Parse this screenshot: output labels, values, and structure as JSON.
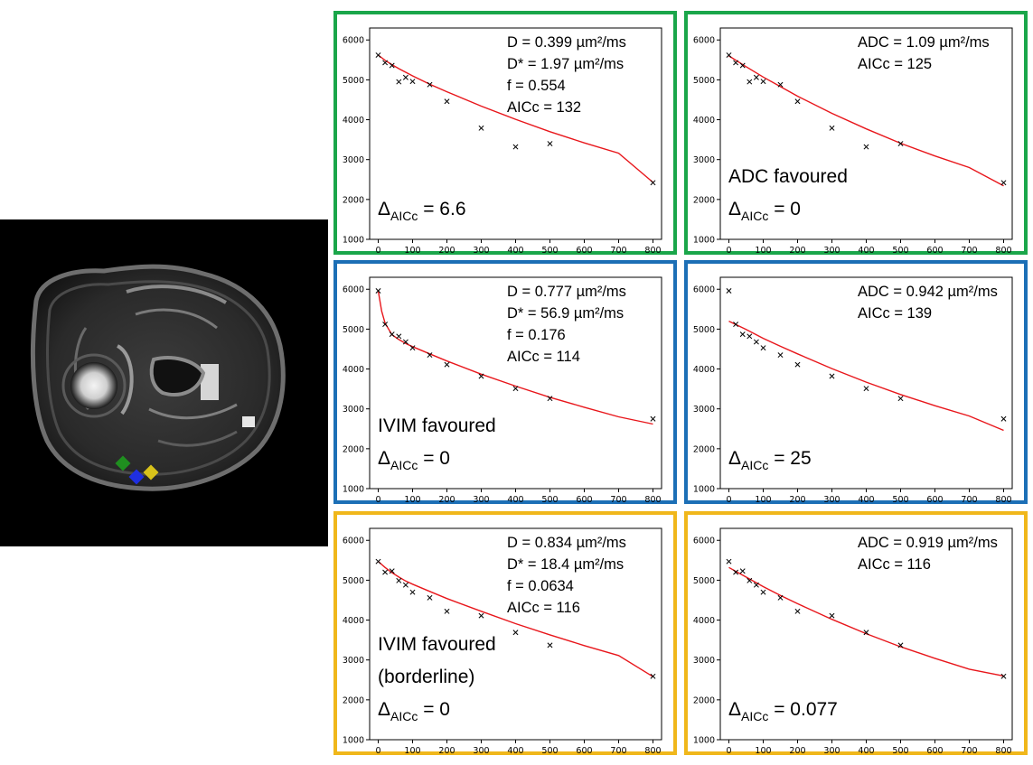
{
  "mri_image": {
    "description_icon": "mri-cross-section-image",
    "roi_markers": [
      {
        "name": "roi-green",
        "color": "#1f8f1f"
      },
      {
        "name": "roi-blue",
        "color": "#1f2fe0"
      },
      {
        "name": "roi-yellow",
        "color": "#d8c21a"
      }
    ]
  },
  "colors": {
    "green": "#1aa64a",
    "blue": "#1c6fb6",
    "yellow": "#f0b71b",
    "fit": "#e8161b",
    "marker": "#000000"
  },
  "chart_data": [
    {
      "type": "scatter",
      "panel": "row1-ivim",
      "border": "green",
      "x": [
        0,
        20,
        40,
        60,
        80,
        100,
        150,
        200,
        300,
        400,
        500,
        800
      ],
      "y": [
        5620,
        5430,
        5360,
        4950,
        5060,
        4960,
        4880,
        4460,
        3790,
        3320,
        3400,
        2420
      ],
      "fit_points": [
        [
          0,
          5620
        ],
        [
          20,
          5490
        ],
        [
          40,
          5380
        ],
        [
          60,
          5280
        ],
        [
          80,
          5190
        ],
        [
          100,
          5100
        ],
        [
          150,
          4890
        ],
        [
          200,
          4700
        ],
        [
          300,
          4340
        ],
        [
          400,
          4010
        ],
        [
          500,
          3700
        ],
        [
          600,
          3420
        ],
        [
          700,
          3160
        ],
        [
          800,
          2430
        ]
      ],
      "xticks": [
        "0",
        "100",
        "200",
        "300",
        "400",
        "500",
        "600",
        "700",
        "800"
      ],
      "yticks": [
        "1000",
        "2000",
        "3000",
        "4000",
        "5000",
        "6000"
      ],
      "xlim": [
        -25,
        825
      ],
      "ylim": [
        1000,
        6300
      ],
      "annotation_lines": [
        "D = 0.399 µm²/ms",
        "D* = 1.97 µm²/ms",
        "f = 0.554",
        "AICc = 132"
      ],
      "verdict_lines": [],
      "delta_prefix": "Δ",
      "delta_sub": "AICc",
      "delta_value": " = 6.6"
    },
    {
      "type": "scatter",
      "panel": "row1-adc",
      "border": "green",
      "x": [
        0,
        20,
        40,
        60,
        80,
        100,
        150,
        200,
        300,
        400,
        500,
        800
      ],
      "y": [
        5620,
        5430,
        5360,
        4950,
        5060,
        4960,
        4880,
        4460,
        3790,
        3320,
        3400,
        2420
      ],
      "fit_points": [
        [
          0,
          5600
        ],
        [
          50,
          5330
        ],
        [
          100,
          5070
        ],
        [
          150,
          4830
        ],
        [
          200,
          4590
        ],
        [
          300,
          4160
        ],
        [
          400,
          3770
        ],
        [
          500,
          3410
        ],
        [
          600,
          3090
        ],
        [
          700,
          2800
        ],
        [
          800,
          2340
        ]
      ],
      "xticks": [
        "0",
        "100",
        "200",
        "300",
        "400",
        "500",
        "600",
        "700",
        "800"
      ],
      "yticks": [
        "1000",
        "2000",
        "3000",
        "4000",
        "5000",
        "6000"
      ],
      "xlim": [
        -25,
        825
      ],
      "ylim": [
        1000,
        6300
      ],
      "annotation_lines": [
        "ADC = 1.09 µm²/ms",
        "AICc = 125"
      ],
      "verdict_lines": [
        "ADC favoured"
      ],
      "delta_prefix": "Δ",
      "delta_sub": "AICc",
      "delta_value": " = 0"
    },
    {
      "type": "scatter",
      "panel": "row2-ivim",
      "border": "blue",
      "x": [
        0,
        20,
        40,
        60,
        80,
        100,
        150,
        200,
        300,
        400,
        500,
        800
      ],
      "y": [
        5960,
        5120,
        4870,
        4820,
        4680,
        4530,
        4350,
        4110,
        3820,
        3510,
        3260,
        2750
      ],
      "fit_points": [
        [
          0,
          5960
        ],
        [
          10,
          5450
        ],
        [
          20,
          5150
        ],
        [
          40,
          4860
        ],
        [
          60,
          4740
        ],
        [
          80,
          4640
        ],
        [
          100,
          4560
        ],
        [
          150,
          4380
        ],
        [
          200,
          4200
        ],
        [
          300,
          3870
        ],
        [
          400,
          3570
        ],
        [
          500,
          3290
        ],
        [
          600,
          3040
        ],
        [
          700,
          2800
        ],
        [
          800,
          2620
        ]
      ],
      "xticks": [
        "0",
        "100",
        "200",
        "300",
        "400",
        "500",
        "600",
        "700",
        "800"
      ],
      "yticks": [
        "1000",
        "2000",
        "3000",
        "4000",
        "5000",
        "6000"
      ],
      "xlim": [
        -25,
        825
      ],
      "ylim": [
        1000,
        6300
      ],
      "annotation_lines": [
        "D = 0.777 µm²/ms",
        "D* = 56.9 µm²/ms",
        "f = 0.176",
        "AICc = 114"
      ],
      "verdict_lines": [
        "IVIM favoured"
      ],
      "delta_prefix": "Δ",
      "delta_sub": "AICc",
      "delta_value": " = 0"
    },
    {
      "type": "scatter",
      "panel": "row2-adc",
      "border": "blue",
      "x": [
        0,
        20,
        40,
        60,
        80,
        100,
        150,
        200,
        300,
        400,
        500,
        800
      ],
      "y": [
        5960,
        5120,
        4870,
        4820,
        4680,
        4530,
        4350,
        4110,
        3820,
        3510,
        3260,
        2750
      ],
      "fit_points": [
        [
          0,
          5200
        ],
        [
          50,
          4990
        ],
        [
          100,
          4770
        ],
        [
          150,
          4570
        ],
        [
          200,
          4380
        ],
        [
          300,
          4010
        ],
        [
          400,
          3670
        ],
        [
          500,
          3360
        ],
        [
          600,
          3080
        ],
        [
          700,
          2820
        ],
        [
          800,
          2460
        ]
      ],
      "xticks": [
        "0",
        "100",
        "200",
        "300",
        "400",
        "500",
        "600",
        "700",
        "800"
      ],
      "yticks": [
        "1000",
        "2000",
        "3000",
        "4000",
        "5000",
        "6000"
      ],
      "xlim": [
        -25,
        825
      ],
      "ylim": [
        1000,
        6300
      ],
      "annotation_lines": [
        "ADC = 0.942 µm²/ms",
        "AICc = 139"
      ],
      "verdict_lines": [],
      "delta_prefix": "Δ",
      "delta_sub": "AICc",
      "delta_value": " = 25"
    },
    {
      "type": "scatter",
      "panel": "row3-ivim",
      "border": "yellow",
      "x": [
        0,
        20,
        40,
        60,
        80,
        100,
        150,
        200,
        300,
        400,
        500,
        800
      ],
      "y": [
        5470,
        5200,
        5230,
        4990,
        4880,
        4700,
        4560,
        4220,
        4110,
        3690,
        3370,
        2590
      ],
      "fit_points": [
        [
          0,
          5470
        ],
        [
          20,
          5320
        ],
        [
          40,
          5190
        ],
        [
          60,
          5080
        ],
        [
          80,
          4980
        ],
        [
          100,
          4900
        ],
        [
          150,
          4720
        ],
        [
          200,
          4540
        ],
        [
          300,
          4220
        ],
        [
          400,
          3910
        ],
        [
          500,
          3630
        ],
        [
          600,
          3360
        ],
        [
          700,
          3110
        ],
        [
          800,
          2580
        ]
      ],
      "xticks": [
        "0",
        "100",
        "200",
        "300",
        "400",
        "500",
        "600",
        "700",
        "800"
      ],
      "yticks": [
        "1000",
        "2000",
        "3000",
        "4000",
        "5000",
        "6000"
      ],
      "xlim": [
        -25,
        825
      ],
      "ylim": [
        1000,
        6300
      ],
      "annotation_lines": [
        "D = 0.834 µm²/ms",
        "D* = 18.4 µm²/ms",
        "f = 0.0634",
        "AICc = 116"
      ],
      "verdict_lines": [
        "IVIM favoured",
        "(borderline)"
      ],
      "delta_prefix": "Δ",
      "delta_sub": "AICc",
      "delta_value": " = 0"
    },
    {
      "type": "scatter",
      "panel": "row3-adc",
      "border": "yellow",
      "x": [
        0,
        20,
        40,
        60,
        80,
        100,
        150,
        200,
        300,
        400,
        500,
        800
      ],
      "y": [
        5470,
        5200,
        5230,
        4990,
        4880,
        4700,
        4560,
        4220,
        4110,
        3690,
        3370,
        2590
      ],
      "fit_points": [
        [
          0,
          5320
        ],
        [
          50,
          5080
        ],
        [
          100,
          4840
        ],
        [
          150,
          4620
        ],
        [
          200,
          4410
        ],
        [
          300,
          4020
        ],
        [
          400,
          3660
        ],
        [
          500,
          3330
        ],
        [
          600,
          3040
        ],
        [
          700,
          2770
        ],
        [
          800,
          2600
        ]
      ],
      "xticks": [
        "0",
        "100",
        "200",
        "300",
        "400",
        "500",
        "600",
        "700",
        "800"
      ],
      "yticks": [
        "1000",
        "2000",
        "3000",
        "4000",
        "5000",
        "6000"
      ],
      "xlim": [
        -25,
        825
      ],
      "ylim": [
        1000,
        6300
      ],
      "annotation_lines": [
        "ADC = 0.919 µm²/ms",
        "AICc = 116"
      ],
      "verdict_lines": [],
      "delta_prefix": "Δ",
      "delta_sub": "AICc",
      "delta_value": " = 0.077"
    }
  ]
}
